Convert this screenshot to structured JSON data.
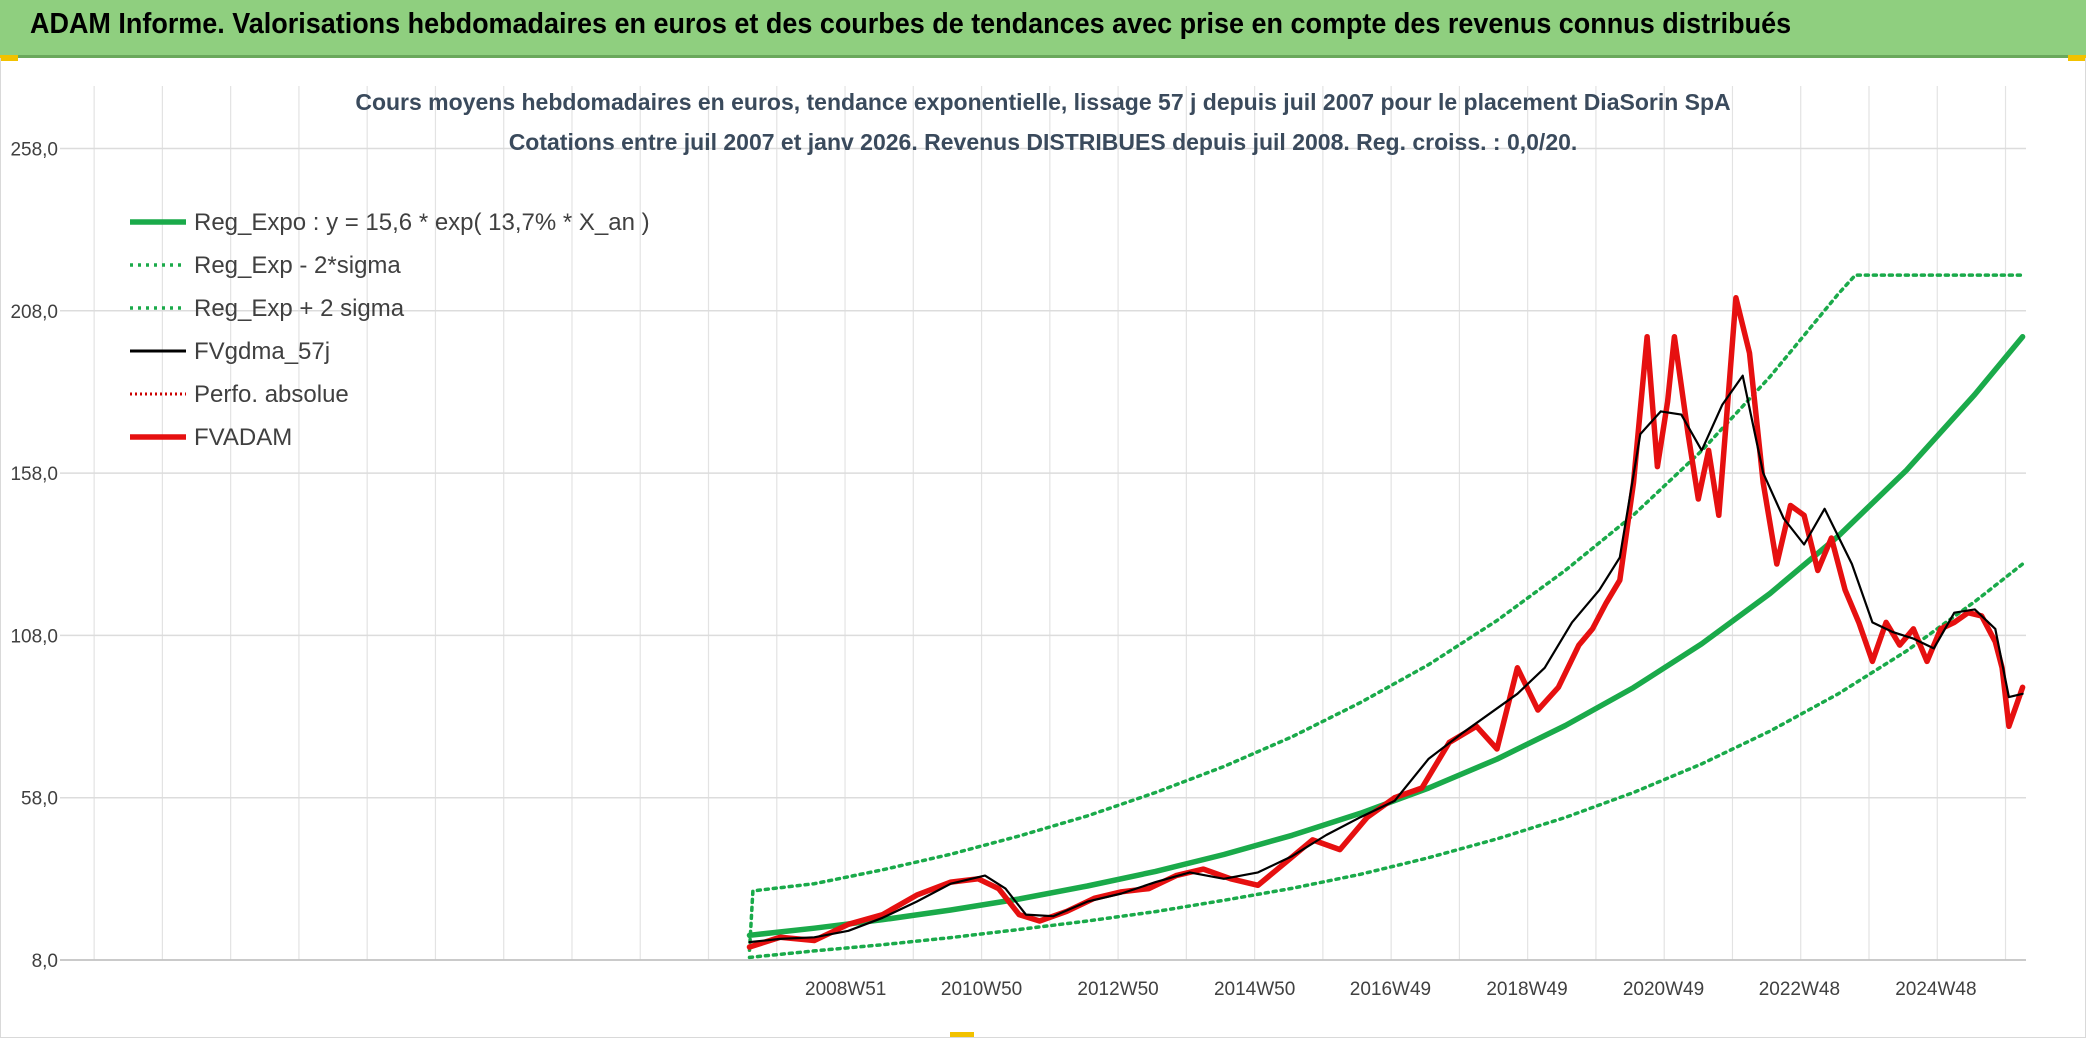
{
  "banner": {
    "title": "ADAM Informe. Valorisations hebdomadaires en euros et des courbes de tendances avec prise en compte des revenus connus distribués",
    "background": "#8fcf7f"
  },
  "chart_data": {
    "type": "line",
    "title": "Cours moyens hebdomadaires en euros, tendance exponentielle, lissage 57 j depuis juil 2007 pour le placement DiaSorin SpA",
    "subtitle": "Cotations entre juil 2007 et janv 2026. Revenus DISTRIBUES depuis juil 2008. Reg. croiss. : 0,0/20.",
    "xlabel": "",
    "ylabel": "",
    "ylim": [
      8,
      268
    ],
    "xlim": [
      1997.45,
      2026.25
    ],
    "yticks": [
      {
        "value": 8,
        "label": "8,0"
      },
      {
        "value": 58,
        "label": "58,0"
      },
      {
        "value": 108,
        "label": "108,0"
      },
      {
        "value": 158,
        "label": "158,0"
      },
      {
        "value": 208,
        "label": "208,0"
      },
      {
        "value": 258,
        "label": "258,0"
      }
    ],
    "xticks": [
      {
        "value": 2008.96,
        "label": "2008W51"
      },
      {
        "value": 2010.95,
        "label": "2010W50"
      },
      {
        "value": 2012.95,
        "label": "2012W50"
      },
      {
        "value": 2014.95,
        "label": "2014W50"
      },
      {
        "value": 2016.94,
        "label": "2016W49"
      },
      {
        "value": 2018.94,
        "label": "2018W49"
      },
      {
        "value": 2020.94,
        "label": "2020W49"
      },
      {
        "value": 2022.93,
        "label": "2022W48"
      },
      {
        "value": 2024.93,
        "label": "2024W48"
      }
    ],
    "grid": true,
    "legend_position": "top-left",
    "series": [
      {
        "name": "Reg_Expo : y = 15,6 * exp( 13,7% *  X_an )",
        "color": "#1aaa4a",
        "style": "solid-thick",
        "x": [
          2007.55,
          2008.5,
          2009.5,
          2010.5,
          2011.5,
          2012.5,
          2013.5,
          2014.5,
          2015.5,
          2016.5,
          2017.5,
          2018.5,
          2019.5,
          2020.5,
          2021.5,
          2022.5,
          2023.5,
          2024.5,
          2025.5,
          2026.2
        ],
        "values": [
          15.6,
          17.8,
          20.4,
          23.4,
          26.8,
          30.8,
          35.3,
          40.5,
          46.4,
          53.2,
          61.0,
          69.9,
          80.2,
          91.9,
          105.4,
          120.9,
          138.6,
          158.9,
          182.2,
          200.0
        ]
      },
      {
        "name": "Reg_Exp - 2*sigma",
        "color": "#1aaa4a",
        "style": "dotted",
        "x": [
          2007.55,
          2008.5,
          2009.5,
          2010.5,
          2011.5,
          2012.5,
          2013.5,
          2014.5,
          2015.5,
          2016.5,
          2017.5,
          2018.5,
          2019.5,
          2020.5,
          2021.5,
          2022.5,
          2023.5,
          2024.5,
          2025.5,
          2026.2
        ],
        "values": [
          8.8,
          10.8,
          12.7,
          14.9,
          17.4,
          20.0,
          22.9,
          26.4,
          30.1,
          34.4,
          39.5,
          45.3,
          51.9,
          59.6,
          68.4,
          78.5,
          90.0,
          103.2,
          118.4,
          130.0
        ]
      },
      {
        "name": "Reg_Exp + 2 sigma",
        "color": "#1aaa4a",
        "style": "dotted",
        "x": [
          2007.55,
          2007.6,
          2008.5,
          2009.5,
          2010.5,
          2011.5,
          2012.5,
          2013.5,
          2014.5,
          2015.5,
          2016.5,
          2017.5,
          2018.5,
          2019.5,
          2020.5,
          2021.5,
          2022.5,
          2023.5,
          2023.75,
          2026.2
        ],
        "values": [
          11.0,
          29.3,
          31.5,
          35.8,
          40.6,
          46.2,
          52.4,
          59.6,
          67.6,
          76.8,
          87.3,
          99.0,
          112.6,
          128.0,
          145.1,
          164.9,
          187.7,
          213.2,
          219.0,
          219.0
        ]
      },
      {
        "name": "FVgdma_57j",
        "color": "#000000",
        "style": "solid",
        "x": [
          2007.55,
          2008.0,
          2008.5,
          2009.0,
          2009.5,
          2010.0,
          2010.5,
          2011.0,
          2011.3,
          2011.6,
          2012.0,
          2012.5,
          2013.0,
          2013.5,
          2014.0,
          2014.5,
          2015.0,
          2015.5,
          2016.0,
          2016.5,
          2017.0,
          2017.5,
          2018.0,
          2018.4,
          2018.8,
          2019.2,
          2019.6,
          2020.0,
          2020.3,
          2020.6,
          2020.9,
          2021.2,
          2021.5,
          2021.8,
          2022.1,
          2022.4,
          2022.7,
          2023.0,
          2023.3,
          2023.7,
          2024.0,
          2024.3,
          2024.6,
          2024.9,
          2025.2,
          2025.5,
          2025.8,
          2026.0,
          2026.2
        ],
        "values": [
          13.5,
          14.5,
          15.0,
          17.0,
          21.0,
          26.0,
          31.5,
          34.0,
          30.0,
          22.0,
          21.5,
          26.0,
          28.5,
          32.0,
          35.0,
          33.0,
          35.0,
          40.0,
          46.5,
          52.0,
          57.0,
          70.0,
          78.0,
          84.0,
          90.0,
          98.0,
          112.0,
          122.0,
          132.0,
          170.0,
          177.0,
          176.0,
          165.0,
          179.0,
          188.0,
          158.0,
          144.0,
          136.0,
          147.0,
          130.0,
          112.0,
          109.0,
          107.0,
          104.0,
          115.0,
          116.0,
          110.0,
          89.0,
          90.0
        ]
      },
      {
        "name": "Perfo. absolue",
        "color": "#cc0000",
        "style": "dotted-thin",
        "x": [],
        "values": []
      },
      {
        "name": "FVADAM",
        "color": "#e61010",
        "style": "solid-thick",
        "x": [
          2007.55,
          2008.0,
          2008.5,
          2009.0,
          2009.5,
          2010.0,
          2010.5,
          2010.9,
          2011.2,
          2011.5,
          2011.8,
          2012.2,
          2012.6,
          2013.0,
          2013.4,
          2013.8,
          2014.2,
          2014.6,
          2015.0,
          2015.4,
          2015.8,
          2016.2,
          2016.6,
          2017.0,
          2017.4,
          2017.8,
          2018.2,
          2018.5,
          2018.8,
          2019.1,
          2019.4,
          2019.7,
          2019.9,
          2020.1,
          2020.3,
          2020.5,
          2020.7,
          2020.85,
          2021.0,
          2021.1,
          2021.3,
          2021.45,
          2021.6,
          2021.75,
          2021.9,
          2022.0,
          2022.2,
          2022.4,
          2022.6,
          2022.8,
          2023.0,
          2023.2,
          2023.4,
          2023.6,
          2023.8,
          2024.0,
          2024.2,
          2024.4,
          2024.6,
          2024.8,
          2025.0,
          2025.2,
          2025.4,
          2025.6,
          2025.8,
          2025.9,
          2026.0,
          2026.1,
          2026.2
        ],
        "values": [
          12.0,
          15.0,
          14.0,
          19.0,
          22.0,
          28.0,
          32.0,
          33.0,
          30.0,
          22.0,
          20.0,
          23.0,
          27.0,
          29.0,
          30.0,
          34.0,
          36.0,
          33.0,
          31.0,
          38.0,
          45.0,
          42.0,
          52.0,
          58.0,
          61.0,
          75.0,
          80.0,
          73.0,
          98.0,
          85.0,
          92.0,
          105.0,
          110.0,
          118.0,
          125.0,
          155.0,
          200.0,
          160.0,
          180.0,
          200.0,
          170.0,
          150.0,
          165.0,
          145.0,
          185.0,
          212.0,
          195.0,
          155.0,
          130.0,
          148.0,
          145.0,
          128.0,
          138.0,
          122.0,
          112.0,
          100.0,
          112.0,
          105.0,
          110.0,
          100.0,
          110.0,
          112.0,
          115.0,
          114.0,
          106.0,
          98.0,
          80.0,
          86.0,
          92.0
        ]
      }
    ]
  }
}
